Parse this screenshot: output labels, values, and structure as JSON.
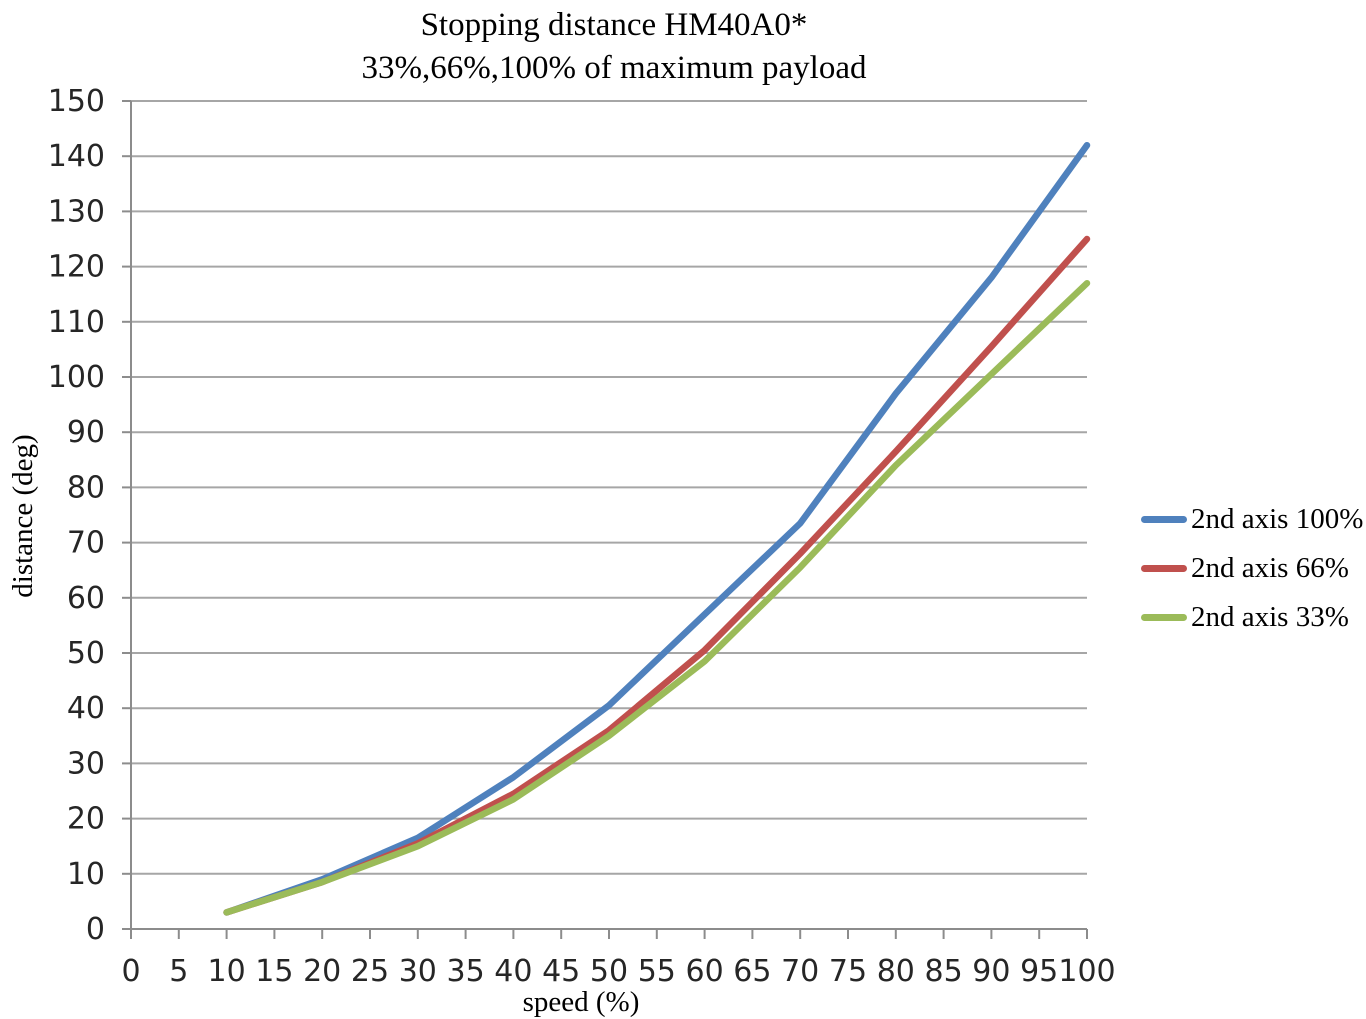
{
  "colors": {
    "gridline": "#a6a6a6",
    "axis": "#8c8c8c",
    "text": "#000000"
  },
  "chart_data": {
    "type": "line",
    "title": "Stopping distance HM40A0*",
    "subtitle": "33%,66%,100% of maximum payload",
    "xlabel": "speed (%)",
    "ylabel": "distance (deg)",
    "xlim": [
      0,
      100
    ],
    "ylim": [
      0,
      150
    ],
    "x_ticks": [
      0,
      5,
      10,
      15,
      20,
      25,
      30,
      35,
      40,
      45,
      50,
      55,
      60,
      65,
      70,
      75,
      80,
      85,
      90,
      95,
      100
    ],
    "y_ticks": [
      0,
      10,
      20,
      30,
      40,
      50,
      60,
      70,
      80,
      90,
      100,
      110,
      120,
      130,
      140,
      150
    ],
    "grid": "horizontal",
    "legend_position": "right",
    "x": [
      10,
      20,
      30,
      40,
      50,
      60,
      70,
      80,
      90,
      100
    ],
    "series": [
      {
        "name": "2nd axis 100%",
        "color": "#4F81BD",
        "values": [
          3,
          9,
          16.5,
          27.5,
          40.5,
          57,
          73.5,
          97,
          118,
          142
        ]
      },
      {
        "name": "2nd axis 66%",
        "color": "#C0504D",
        "values": [
          3,
          8.5,
          15.5,
          24.5,
          36,
          50.5,
          68,
          86.5,
          105.5,
          125
        ]
      },
      {
        "name": "2nd axis 33%",
        "color": "#9BBB59",
        "values": [
          3,
          8.5,
          15,
          23.5,
          35,
          48.5,
          65.5,
          84,
          100.5,
          117
        ]
      }
    ]
  }
}
